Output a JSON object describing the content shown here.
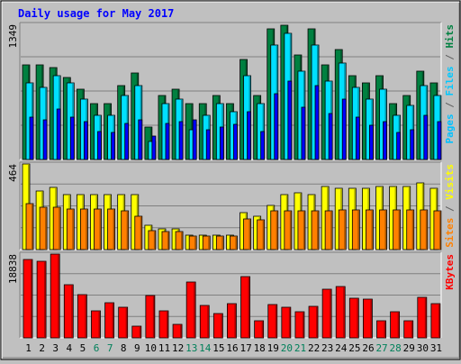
{
  "chart_data": {
    "type": "bar",
    "title": "Daily usage for May 2017",
    "categories": [
      "1",
      "2",
      "3",
      "4",
      "5",
      "6",
      "7",
      "8",
      "9",
      "10",
      "11",
      "12",
      "13",
      "14",
      "15",
      "16",
      "17",
      "18",
      "19",
      "20",
      "21",
      "22",
      "23",
      "24",
      "25",
      "26",
      "27",
      "28",
      "29",
      "30",
      "31"
    ],
    "weekend_days": [
      "6",
      "7",
      "13",
      "14",
      "20",
      "21",
      "27",
      "28"
    ],
    "panels": [
      {
        "name": "hits-files-pages",
        "max_label": "1349",
        "ymax": 1349,
        "side_labels": [
          {
            "text": "Pages",
            "color": "#00c0ff"
          },
          {
            "text": " / ",
            "color": "#606060"
          },
          {
            "text": "Files",
            "color": "#00c8ff"
          },
          {
            "text": " / ",
            "color": "#606060"
          },
          {
            "text": "Hits",
            "color": "#008040"
          }
        ],
        "series": [
          {
            "name": "Hits",
            "color": "#008040",
            "values": [
              940,
              940,
              920,
              820,
              700,
              560,
              560,
              740,
              860,
              320,
              640,
              700,
              560,
              560,
              640,
              560,
              1000,
              640,
              1300,
              1340,
              1040,
              1300,
              940,
              1100,
              840,
              760,
              840,
              560,
              640,
              880,
              760
            ]
          },
          {
            "name": "Files",
            "color": "#00e0ff",
            "values": [
              760,
              720,
              840,
              760,
              600,
              440,
              440,
              640,
              740,
              180,
              560,
              600,
              300,
              440,
              560,
              480,
              840,
              560,
              1140,
              1260,
              880,
              1140,
              780,
              960,
              720,
              600,
              700,
              440,
              540,
              740,
              640
            ]
          },
          {
            "name": "Pages",
            "color": "#0000ff",
            "values": [
              420,
              400,
              500,
              420,
              380,
              280,
              270,
              360,
              400,
              230,
              360,
              380,
              400,
              300,
              320,
              350,
              480,
              280,
              660,
              780,
              520,
              740,
              460,
              600,
              420,
              340,
              380,
              270,
              300,
              440,
              380
            ]
          }
        ]
      },
      {
        "name": "visits-sites",
        "max_label": "464",
        "ymax": 464,
        "side_labels": [
          {
            "text": "Sites",
            "color": "#ff8000"
          },
          {
            "text": " / ",
            "color": "#606060"
          },
          {
            "text": "Visits",
            "color": "#ffff00"
          }
        ],
        "series": [
          {
            "name": "Visits",
            "color": "#ffff00",
            "values": [
              464,
              318,
              336,
              300,
              300,
              300,
              300,
              300,
              300,
              130,
              110,
              110,
              80,
              80,
              80,
              80,
              200,
              180,
              240,
              300,
              310,
              300,
              340,
              330,
              330,
              330,
              340,
              340,
              340,
              360,
              330
            ]
          },
          {
            "name": "Sites",
            "color": "#ff8000",
            "values": [
              250,
              230,
              230,
              220,
              220,
              220,
              220,
              210,
              180,
              105,
              100,
              100,
              75,
              75,
              75,
              75,
              165,
              160,
              210,
              210,
              210,
              210,
              210,
              215,
              215,
              215,
              215,
              215,
              215,
              215,
              210
            ]
          }
        ]
      },
      {
        "name": "kbytes",
        "max_label": "18838",
        "ymax": 18838,
        "side_labels": [
          {
            "text": "KBytes",
            "color": "#ff0000"
          }
        ],
        "series": [
          {
            "name": "KBytes",
            "color": "#ff0000",
            "values": [
              17700,
              17200,
              18838,
              12000,
              9800,
              6100,
              7800,
              6800,
              2600,
              9500,
              6100,
              3000,
              12600,
              7200,
              5500,
              7700,
              13800,
              3800,
              7400,
              6800,
              5800,
              7000,
              11000,
              11600,
              9000,
              8800,
              3800,
              5900,
              3800,
              9200,
              7600
            ]
          }
        ]
      }
    ]
  }
}
